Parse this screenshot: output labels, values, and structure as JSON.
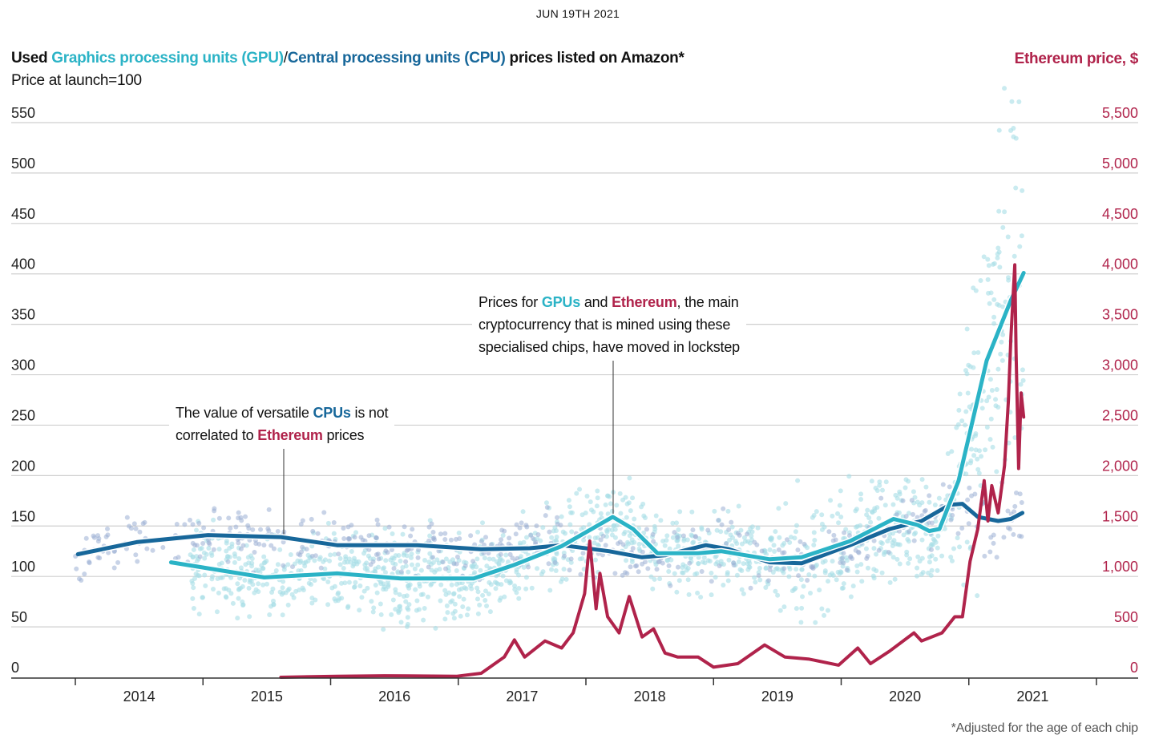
{
  "header": {
    "date": "JUN 19TH 2021"
  },
  "colors": {
    "gpu": "#2BB3C6",
    "cpu": "#17679A",
    "ethereum": "#B0234B",
    "gpu_scatter": "#A6DDE6",
    "cpu_scatter": "#9AAFD4"
  },
  "chart_data": {
    "type": "line",
    "title_parts": [
      "Used ",
      "Graphics processing units (GPU)",
      "/",
      "Central processing units (CPU)",
      " prices listed on Amazon*"
    ],
    "subtitle": "Price at launch=100",
    "right_axis_title": "Ethereum price, $",
    "footnote": "*Adjusted for the age of each chip",
    "x_ticks": [
      "2014",
      "2015",
      "2016",
      "2017",
      "2018",
      "2019",
      "2020",
      "2021"
    ],
    "xlim": [
      2014,
      2022
    ],
    "y_left": {
      "ylim": [
        0,
        550
      ],
      "ticks": [
        "0",
        "50",
        "100",
        "150",
        "200",
        "250",
        "300",
        "350",
        "400",
        "450",
        "500",
        "550"
      ]
    },
    "y_right": {
      "ylim": [
        0,
        5500
      ],
      "ticks": [
        "0",
        "500",
        "1,000",
        "1,500",
        "2,000",
        "2,500",
        "3,000",
        "3,500",
        "4,000",
        "4,500",
        "5,000",
        "5,500"
      ]
    },
    "grid": true,
    "series": [
      {
        "name": "Graphics processing units (GPU)",
        "axis": "left",
        "points": [
          [
            2014.75,
            114
          ],
          [
            2015.48,
            99
          ],
          [
            2016.05,
            103
          ],
          [
            2016.55,
            98
          ],
          [
            2017.12,
            98
          ],
          [
            2017.43,
            111
          ],
          [
            2017.81,
            130
          ],
          [
            2018.21,
            159
          ],
          [
            2018.37,
            147
          ],
          [
            2018.56,
            123
          ],
          [
            2018.88,
            123
          ],
          [
            2019.06,
            125
          ],
          [
            2019.44,
            117
          ],
          [
            2019.69,
            119
          ],
          [
            2020.07,
            135
          ],
          [
            2020.41,
            157
          ],
          [
            2020.6,
            151
          ],
          [
            2020.69,
            145
          ],
          [
            2020.77,
            147
          ],
          [
            2020.92,
            195
          ],
          [
            2021.14,
            314
          ],
          [
            2021.33,
            374
          ],
          [
            2021.43,
            401
          ]
        ]
      },
      {
        "name": "Central processing units (CPU)",
        "axis": "left",
        "points": [
          [
            2014.02,
            122
          ],
          [
            2014.48,
            134
          ],
          [
            2015.04,
            141
          ],
          [
            2015.61,
            139
          ],
          [
            2016.05,
            131
          ],
          [
            2016.68,
            131
          ],
          [
            2017.18,
            127
          ],
          [
            2017.56,
            128
          ],
          [
            2017.81,
            131
          ],
          [
            2018.18,
            125
          ],
          [
            2018.44,
            119
          ],
          [
            2018.62,
            121
          ],
          [
            2018.94,
            131
          ],
          [
            2019.12,
            127
          ],
          [
            2019.44,
            114
          ],
          [
            2019.69,
            113
          ],
          [
            2020.07,
            131
          ],
          [
            2020.38,
            147
          ],
          [
            2020.63,
            155
          ],
          [
            2020.85,
            171
          ],
          [
            2020.95,
            172
          ],
          [
            2021.07,
            159
          ],
          [
            2021.23,
            155
          ],
          [
            2021.33,
            157
          ],
          [
            2021.42,
            163
          ]
        ]
      },
      {
        "name": "Ethereum price, $",
        "axis": "right",
        "points": [
          [
            2015.61,
            0
          ],
          [
            2016.05,
            10
          ],
          [
            2016.42,
            15
          ],
          [
            2016.99,
            10
          ],
          [
            2017.18,
            40
          ],
          [
            2017.36,
            200
          ],
          [
            2017.44,
            370
          ],
          [
            2017.52,
            200
          ],
          [
            2017.68,
            360
          ],
          [
            2017.81,
            290
          ],
          [
            2017.9,
            440
          ],
          [
            2017.99,
            830
          ],
          [
            2018.03,
            1350
          ],
          [
            2018.08,
            680
          ],
          [
            2018.11,
            1030
          ],
          [
            2018.17,
            600
          ],
          [
            2018.26,
            440
          ],
          [
            2018.34,
            800
          ],
          [
            2018.44,
            400
          ],
          [
            2018.53,
            480
          ],
          [
            2018.62,
            240
          ],
          [
            2018.72,
            200
          ],
          [
            2018.88,
            200
          ],
          [
            2019.0,
            100
          ],
          [
            2019.19,
            135
          ],
          [
            2019.4,
            320
          ],
          [
            2019.56,
            200
          ],
          [
            2019.75,
            180
          ],
          [
            2019.98,
            120
          ],
          [
            2020.13,
            290
          ],
          [
            2020.23,
            135
          ],
          [
            2020.38,
            260
          ],
          [
            2020.57,
            440
          ],
          [
            2020.63,
            360
          ],
          [
            2020.79,
            440
          ],
          [
            2020.89,
            600
          ],
          [
            2020.95,
            600
          ],
          [
            2021.01,
            1150
          ],
          [
            2021.07,
            1470
          ],
          [
            2021.12,
            1950
          ],
          [
            2021.15,
            1550
          ],
          [
            2021.18,
            1900
          ],
          [
            2021.23,
            1630
          ],
          [
            2021.28,
            2100
          ],
          [
            2021.31,
            2740
          ],
          [
            2021.33,
            3380
          ],
          [
            2021.36,
            4090
          ],
          [
            2021.37,
            3220
          ],
          [
            2021.39,
            2070
          ],
          [
            2021.41,
            2820
          ],
          [
            2021.43,
            2580
          ]
        ]
      }
    ],
    "annotations": [
      {
        "parts": [
          "The value of versatile ",
          "CPUs",
          " is not",
          "correlated to ",
          "Ethereum",
          " prices"
        ]
      },
      {
        "parts": [
          "Prices for ",
          "GPUs",
          " and ",
          "Ethereum",
          ", the main",
          "cryptocurrency that is mined using these",
          "specialised chips, have moved in lockstep"
        ]
      }
    ]
  }
}
